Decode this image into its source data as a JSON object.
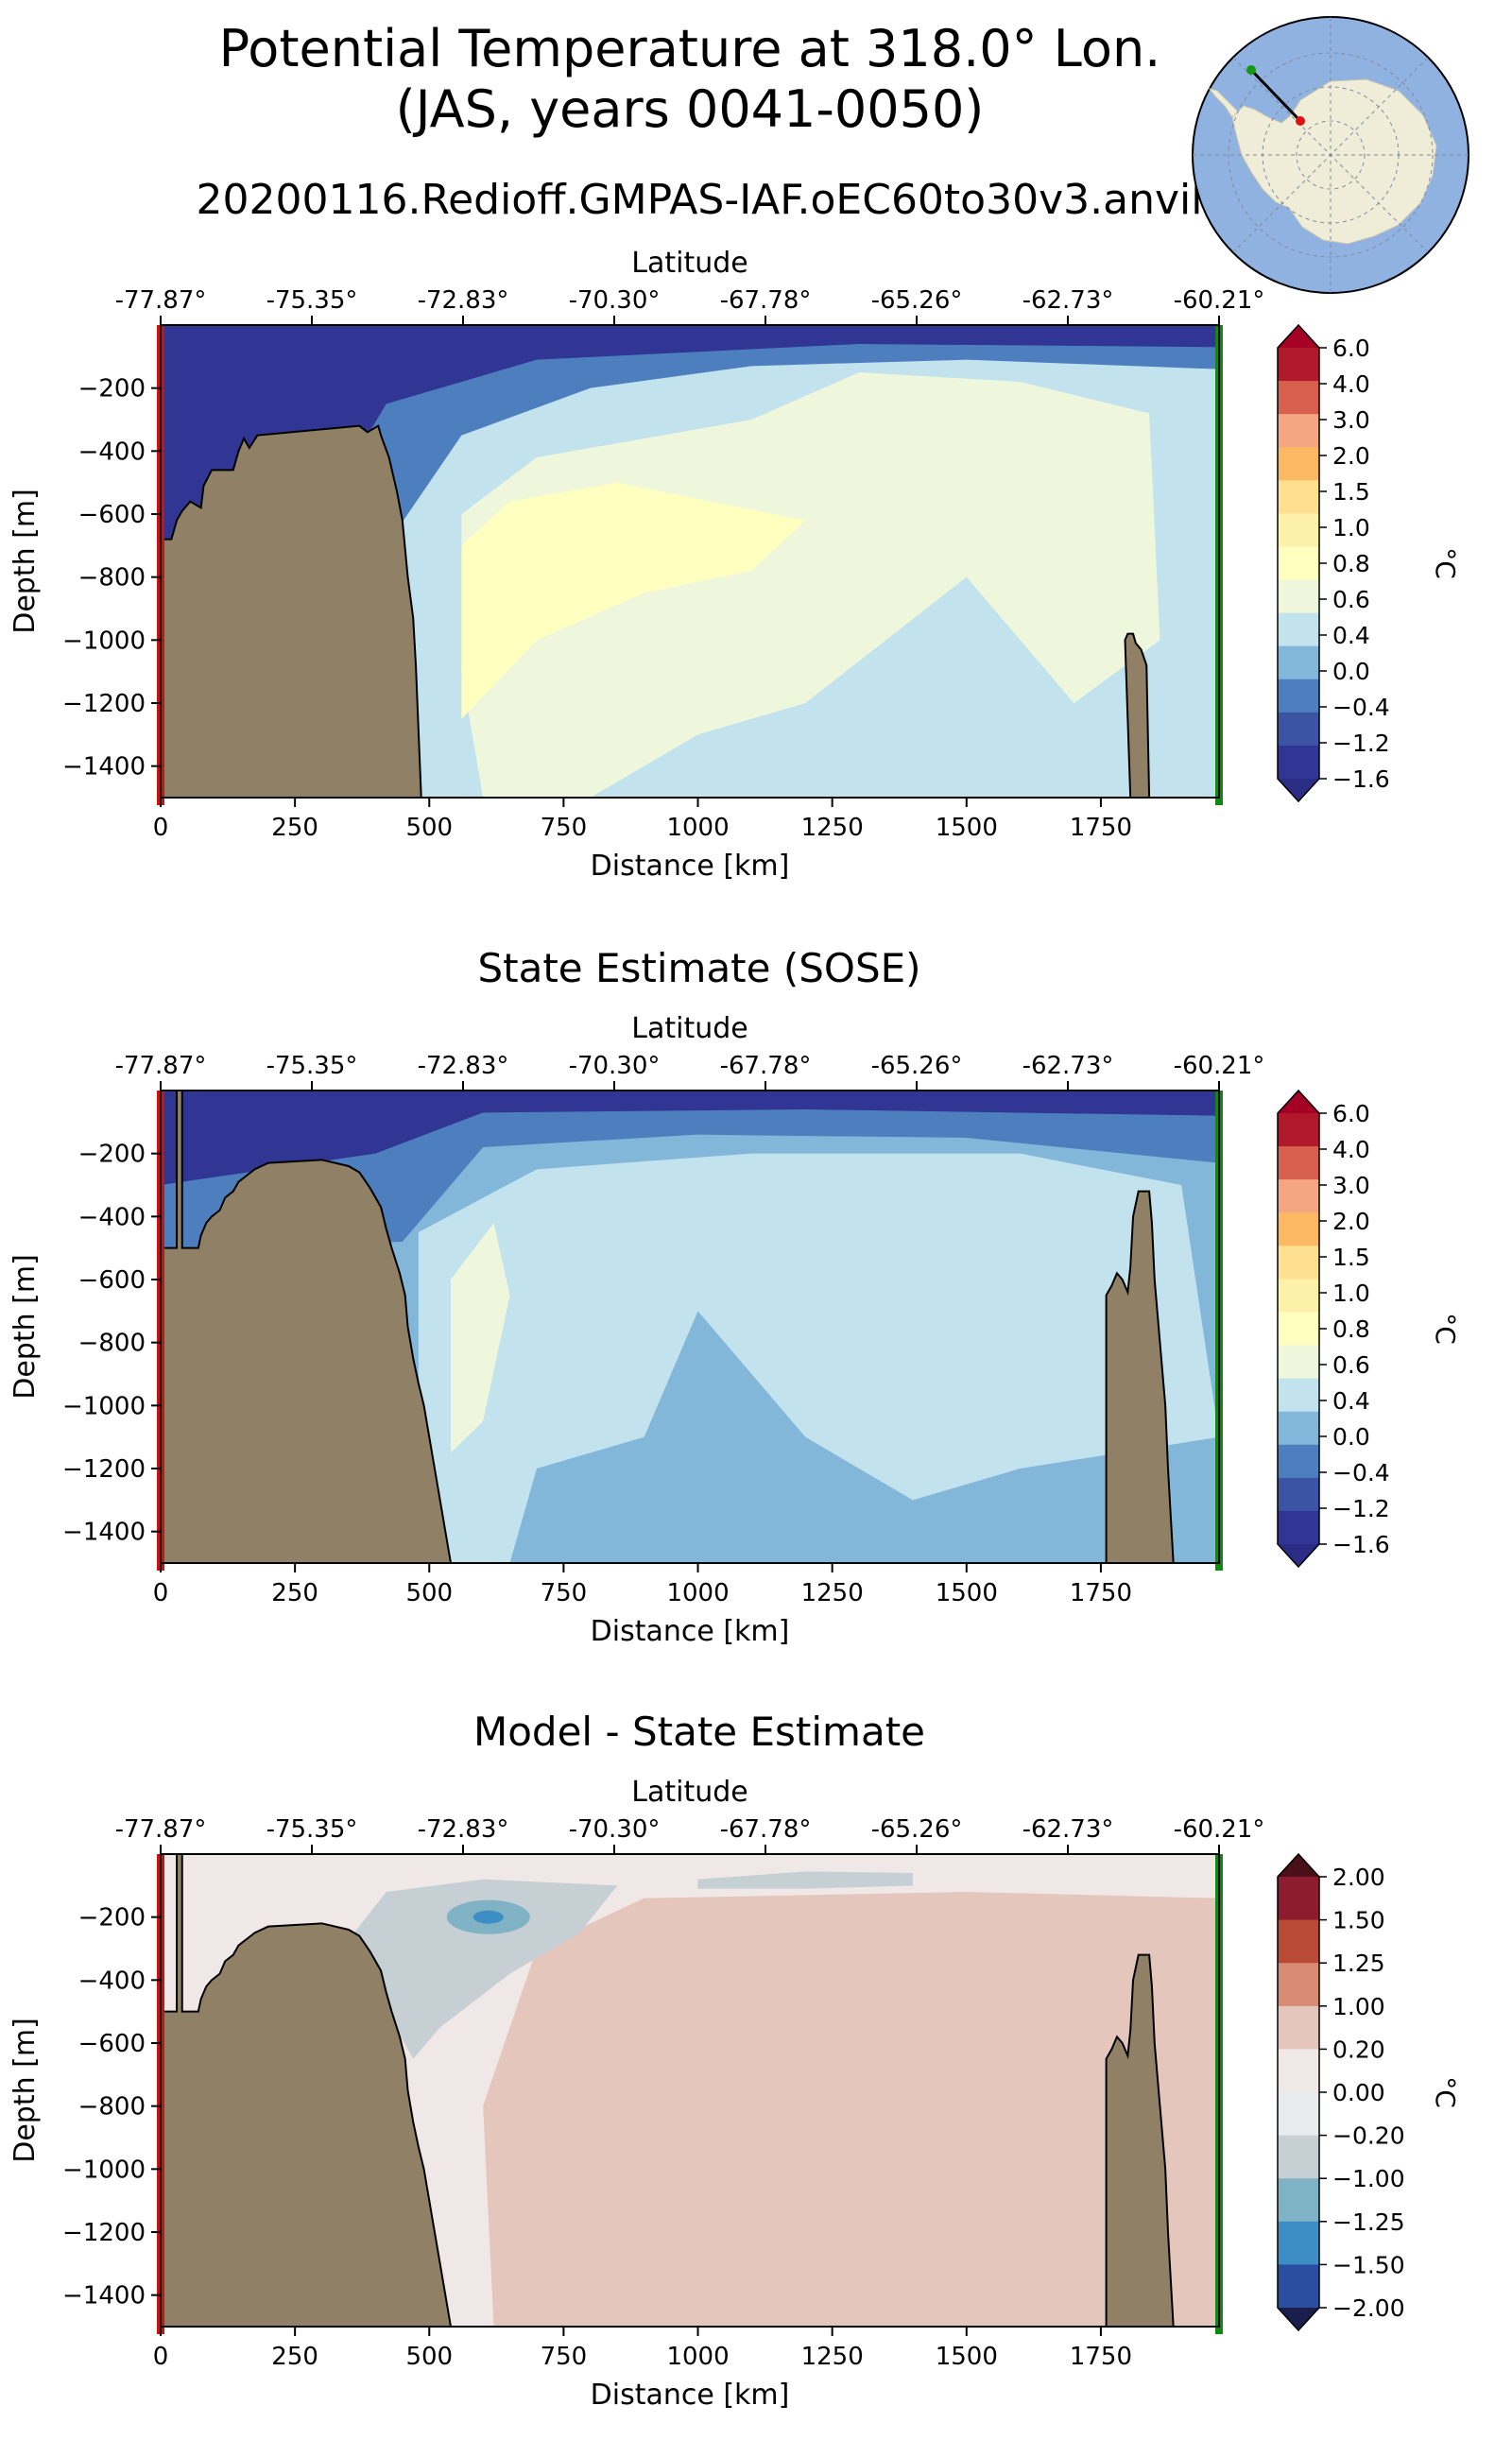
{
  "header": {
    "title_line1": "Potential Temperature at 318.0° Lon.",
    "title_line2": "(JAS, years 0041-0050)",
    "run_name": "20200116.Redioff.GMPAS-IAF.oEC60to30v3.anvil"
  },
  "colors": {
    "ocean_map": "#8fb2e0",
    "land_map": "#efecd8",
    "bottom_fill": "#8f8066",
    "start_marker": "#cc1111",
    "end_marker": "#118811"
  },
  "chart_data": [
    {
      "type": "contourf",
      "title": "",
      "xlabel": "Distance [km]",
      "ylabel": "Depth [m]",
      "top_axis_label": "Latitude",
      "top_ticks": [
        "-77.87°",
        "-75.35°",
        "-72.83°",
        "-70.30°",
        "-67.78°",
        "-65.26°",
        "-62.73°",
        "-60.21°"
      ],
      "x_ticks": [
        0,
        250,
        500,
        750,
        1000,
        1250,
        1500,
        1750
      ],
      "y_ticks": [
        -200,
        -400,
        -600,
        -800,
        -1000,
        -1200,
        -1400
      ],
      "xlim": [
        0,
        1970
      ],
      "ylim": [
        -1500,
        0
      ],
      "colorbar_label": "°C",
      "colorbar_levels": [
        "6.0",
        "4.0",
        "3.0",
        "2.0",
        "1.5",
        "1.0",
        "0.8",
        "0.6",
        "0.4",
        "0.0",
        "-0.4",
        "-1.2",
        "-1.6"
      ],
      "colorbar_colors": [
        "#b2182b",
        "#d6604d",
        "#f4a582",
        "#fdb863",
        "#fee090",
        "#fdf0a8",
        "#ffffbf",
        "#eef7dc",
        "#c2e2ee",
        "#83b7d9",
        "#4d7fbf",
        "#3b54a4",
        "#313695"
      ],
      "colorbar_over": "#a50026",
      "colorbar_under": "#2b2d85",
      "bathymetry": [
        [
          0,
          -680
        ],
        [
          10,
          -680
        ],
        [
          20,
          -680
        ],
        [
          30,
          -620
        ],
        [
          40,
          -590
        ],
        [
          55,
          -560
        ],
        [
          75,
          -580
        ],
        [
          80,
          -510
        ],
        [
          95,
          -460
        ],
        [
          135,
          -460
        ],
        [
          145,
          -400
        ],
        [
          155,
          -360
        ],
        [
          165,
          -390
        ],
        [
          180,
          -350
        ],
        [
          370,
          -320
        ],
        [
          385,
          -340
        ],
        [
          405,
          -320
        ],
        [
          410,
          -350
        ],
        [
          425,
          -420
        ],
        [
          440,
          -530
        ],
        [
          450,
          -620
        ],
        [
          460,
          -800
        ],
        [
          470,
          -930
        ],
        [
          475,
          -1080
        ],
        [
          485,
          -1500
        ]
      ],
      "seamount": [
        [
          1805,
          -1500
        ],
        [
          1795,
          -1000
        ],
        [
          1800,
          -980
        ],
        [
          1810,
          -980
        ],
        [
          1815,
          -1010
        ],
        [
          1825,
          -1030
        ],
        [
          1835,
          -1080
        ],
        [
          1840,
          -1500
        ]
      ],
      "temperature_field_summary": "warm core 0.6-0.8 °C at 500-1200 km, 500-1200 m depth; cold layer below -1.2 °C in upper 100 m and over the shelf"
    },
    {
      "type": "contourf",
      "title": "State Estimate (SOSE)",
      "xlabel": "Distance [km]",
      "ylabel": "Depth [m]",
      "top_axis_label": "Latitude",
      "top_ticks": [
        "-77.87°",
        "-75.35°",
        "-72.83°",
        "-70.30°",
        "-67.78°",
        "-65.26°",
        "-62.73°",
        "-60.21°"
      ],
      "x_ticks": [
        0,
        250,
        500,
        750,
        1000,
        1250,
        1500,
        1750
      ],
      "y_ticks": [
        -200,
        -400,
        -600,
        -800,
        -1000,
        -1200,
        -1400
      ],
      "xlim": [
        0,
        1970
      ],
      "ylim": [
        -1500,
        0
      ],
      "colorbar_label": "°C",
      "colorbar_levels": [
        "6.0",
        "4.0",
        "3.0",
        "2.0",
        "1.5",
        "1.0",
        "0.8",
        "0.6",
        "0.4",
        "0.0",
        "-0.4",
        "-1.2",
        "-1.6"
      ],
      "colorbar_colors": [
        "#b2182b",
        "#d6604d",
        "#f4a582",
        "#fdb863",
        "#fee090",
        "#fdf0a8",
        "#ffffbf",
        "#eef7dc",
        "#c2e2ee",
        "#83b7d9",
        "#4d7fbf",
        "#3b54a4",
        "#313695"
      ],
      "colorbar_over": "#a50026",
      "colorbar_under": "#2b2d85",
      "bathymetry": [
        [
          0,
          -500
        ],
        [
          30,
          -500
        ],
        [
          30,
          0
        ],
        [
          40,
          0
        ],
        [
          40,
          -500
        ],
        [
          70,
          -500
        ],
        [
          75,
          -460
        ],
        [
          85,
          -420
        ],
        [
          95,
          -400
        ],
        [
          110,
          -380
        ],
        [
          120,
          -340
        ],
        [
          135,
          -320
        ],
        [
          145,
          -290
        ],
        [
          160,
          -270
        ],
        [
          175,
          -250
        ],
        [
          200,
          -230
        ],
        [
          300,
          -220
        ],
        [
          350,
          -240
        ],
        [
          370,
          -260
        ],
        [
          390,
          -310
        ],
        [
          410,
          -370
        ],
        [
          420,
          -440
        ],
        [
          430,
          -500
        ],
        [
          445,
          -580
        ],
        [
          455,
          -650
        ],
        [
          460,
          -750
        ],
        [
          470,
          -850
        ],
        [
          480,
          -930
        ],
        [
          490,
          -1000
        ],
        [
          500,
          -1100
        ],
        [
          510,
          -1200
        ],
        [
          520,
          -1300
        ],
        [
          530,
          -1400
        ],
        [
          540,
          -1500
        ]
      ],
      "seamount": [
        [
          1760,
          -1500
        ],
        [
          1760,
          -650
        ],
        [
          1770,
          -620
        ],
        [
          1780,
          -580
        ],
        [
          1790,
          -600
        ],
        [
          1800,
          -640
        ],
        [
          1805,
          -560
        ],
        [
          1810,
          -400
        ],
        [
          1820,
          -320
        ],
        [
          1840,
          -320
        ],
        [
          1845,
          -420
        ],
        [
          1850,
          -600
        ],
        [
          1860,
          -800
        ],
        [
          1870,
          -1000
        ],
        [
          1875,
          -1200
        ],
        [
          1885,
          -1500
        ]
      ],
      "temperature_field_summary": "mostly 0.0-0.4 °C below 400 m; a narrow 0.4-0.6 °C lens near 550 km; -0.4 to 0.0 °C water in the deep interior"
    },
    {
      "type": "contourf",
      "title": "Model - State Estimate",
      "xlabel": "Distance [km]",
      "ylabel": "Depth [m]",
      "top_axis_label": "Latitude",
      "top_ticks": [
        "-77.87°",
        "-75.35°",
        "-72.83°",
        "-70.30°",
        "-67.78°",
        "-65.26°",
        "-62.73°",
        "-60.21°"
      ],
      "x_ticks": [
        0,
        250,
        500,
        750,
        1000,
        1250,
        1500,
        1750
      ],
      "y_ticks": [
        -200,
        -400,
        -600,
        -800,
        -1000,
        -1200,
        -1400
      ],
      "xlim": [
        0,
        1970
      ],
      "ylim": [
        -1500,
        0
      ],
      "colorbar_label": "°C",
      "colorbar_levels": [
        "2.00",
        "1.50",
        "1.25",
        "1.00",
        "0.20",
        "0.00",
        "-0.20",
        "-1.00",
        "-1.25",
        "-1.50",
        "-2.00"
      ],
      "colorbar_colors": [
        "#8c1c2e",
        "#b94a35",
        "#d68b72",
        "#e5c6bd",
        "#f0e8e6",
        "#e9ecee",
        "#c6cfd4",
        "#7fb2c5",
        "#3d8ec4",
        "#2a4ea0"
      ],
      "colorbar_over": "#4a0f18",
      "colorbar_under": "#1b1d4d",
      "bathymetry": [
        [
          0,
          -500
        ],
        [
          30,
          -500
        ],
        [
          30,
          0
        ],
        [
          40,
          0
        ],
        [
          40,
          -500
        ],
        [
          70,
          -500
        ],
        [
          75,
          -460
        ],
        [
          85,
          -420
        ],
        [
          95,
          -400
        ],
        [
          110,
          -380
        ],
        [
          120,
          -340
        ],
        [
          135,
          -320
        ],
        [
          145,
          -290
        ],
        [
          160,
          -270
        ],
        [
          175,
          -250
        ],
        [
          200,
          -230
        ],
        [
          300,
          -220
        ],
        [
          350,
          -240
        ],
        [
          370,
          -260
        ],
        [
          390,
          -310
        ],
        [
          410,
          -370
        ],
        [
          420,
          -440
        ],
        [
          430,
          -500
        ],
        [
          445,
          -580
        ],
        [
          455,
          -650
        ],
        [
          460,
          -750
        ],
        [
          470,
          -850
        ],
        [
          480,
          -930
        ],
        [
          490,
          -1000
        ],
        [
          500,
          -1100
        ],
        [
          510,
          -1200
        ],
        [
          520,
          -1300
        ],
        [
          530,
          -1400
        ],
        [
          540,
          -1500
        ]
      ],
      "seamount": [
        [
          1760,
          -1500
        ],
        [
          1760,
          -650
        ],
        [
          1770,
          -620
        ],
        [
          1780,
          -580
        ],
        [
          1790,
          -600
        ],
        [
          1800,
          -640
        ],
        [
          1805,
          -560
        ],
        [
          1810,
          -400
        ],
        [
          1820,
          -320
        ],
        [
          1840,
          -320
        ],
        [
          1845,
          -420
        ],
        [
          1850,
          -600
        ],
        [
          1860,
          -800
        ],
        [
          1870,
          -1000
        ],
        [
          1875,
          -1200
        ],
        [
          1885,
          -1500
        ]
      ],
      "temperature_field_summary": "model warmer by 0.2-1.0 °C across most of the section east of ~600 km; model colder by up to -1.5 °C near 600 km at 200 m depth"
    }
  ]
}
